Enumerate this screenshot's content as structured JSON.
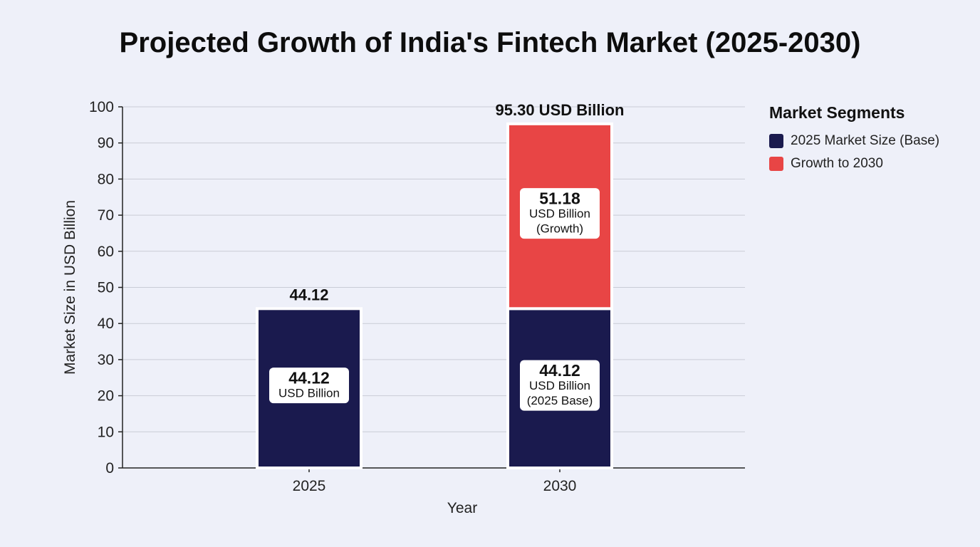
{
  "chart_data": {
    "type": "bar",
    "stacked": true,
    "title": "Projected Growth of India's Fintech Market (2025-2030)",
    "xlabel": "Year",
    "ylabel": "Market Size in USD Billion",
    "ylim": [
      0,
      100
    ],
    "yticks": [
      0,
      10,
      20,
      30,
      40,
      50,
      60,
      70,
      80,
      90,
      100
    ],
    "grid": true,
    "legend_position": "right",
    "legend_title": "Market Segments",
    "categories": [
      "2025",
      "2030"
    ],
    "series": [
      {
        "name": "2025 Market Size (Base)",
        "color": "#1a1a4e",
        "values": [
          44.12,
          44.12
        ],
        "labels": [
          [
            "44.12",
            "USD Billion"
          ],
          [
            "44.12",
            "USD Billion",
            "(2025 Base)"
          ]
        ]
      },
      {
        "name": "Growth to 2030",
        "color": "#e84545",
        "values": [
          0,
          51.18
        ],
        "labels": [
          null,
          [
            "51.18",
            "USD Billion",
            "(Growth)"
          ]
        ]
      }
    ],
    "total_labels": [
      "44.12",
      "95.30 USD Billion"
    ]
  }
}
